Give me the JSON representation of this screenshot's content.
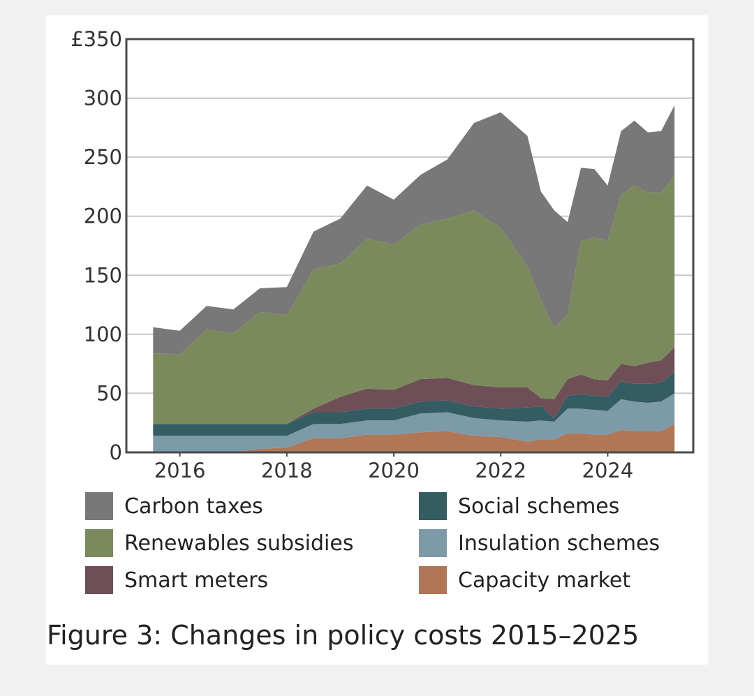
{
  "caption": "Figure 3:  Changes in policy costs 2015–2025",
  "chart_data": {
    "type": "area",
    "stacked": true,
    "x": [
      2015.5,
      2016.0,
      2016.5,
      2017.0,
      2017.5,
      2018.0,
      2018.5,
      2019.0,
      2019.5,
      2020.0,
      2020.5,
      2021.0,
      2021.5,
      2022.0,
      2022.5,
      2022.75,
      2023.0,
      2023.25,
      2023.5,
      2023.75,
      2024.0,
      2024.25,
      2024.5,
      2024.75,
      2025.0,
      2025.25
    ],
    "xticks": [
      2016,
      2018,
      2020,
      2022,
      2024
    ],
    "xlim": [
      2015.0,
      2025.6
    ],
    "ylim": [
      0,
      350
    ],
    "yticks": [
      0,
      50,
      100,
      150,
      200,
      250,
      300,
      350
    ],
    "ytick_labels": [
      "0",
      "50",
      "100",
      "150",
      "200",
      "250",
      "300",
      "£350"
    ],
    "grid": true,
    "legend_position": "bottom",
    "series": [
      {
        "name": "Capacity market",
        "color": "#b07655",
        "values": [
          0,
          0,
          0,
          0,
          3,
          4,
          12,
          12,
          15,
          15,
          17,
          18,
          14,
          13,
          9,
          11,
          11,
          16,
          16,
          15,
          15,
          19,
          18,
          18,
          18,
          24
        ]
      },
      {
        "name": "Insulation schemes",
        "color": "#7d9aa8",
        "values": [
          14,
          14,
          14,
          14,
          11,
          10,
          12,
          12,
          12,
          12,
          16,
          16,
          15,
          14,
          17,
          16,
          15,
          21,
          21,
          21,
          20,
          26,
          25,
          24,
          25,
          26
        ]
      },
      {
        "name": "Social schemes",
        "color": "#345c63",
        "values": [
          10,
          10,
          10,
          10,
          10,
          10,
          10,
          10,
          10,
          10,
          10,
          10,
          10,
          10,
          12,
          12,
          3,
          11,
          12,
          12,
          12,
          15,
          15,
          16,
          16,
          18
        ]
      },
      {
        "name": "Smart meters",
        "color": "#6e4f58",
        "values": [
          0,
          0,
          0,
          0,
          0,
          0,
          3,
          13,
          17,
          16,
          19,
          19,
          18,
          18,
          17,
          7,
          16,
          14,
          17,
          14,
          14,
          15,
          15,
          18,
          19,
          21
        ]
      },
      {
        "name": "Renewables subsidies",
        "color": "#7b8a5c",
        "values": [
          60,
          59,
          80,
          77,
          95,
          92,
          118,
          113,
          127,
          123,
          131,
          135,
          148,
          135,
          103,
          83,
          60,
          55,
          113,
          120,
          118,
          143,
          153,
          144,
          142,
          145
        ]
      },
      {
        "name": "Carbon taxes",
        "color": "#787878",
        "values": [
          22,
          20,
          20,
          20,
          20,
          24,
          32,
          38,
          45,
          38,
          42,
          50,
          74,
          98,
          110,
          92,
          100,
          78,
          62,
          58,
          47,
          54,
          55,
          51,
          52,
          60
        ]
      }
    ]
  }
}
